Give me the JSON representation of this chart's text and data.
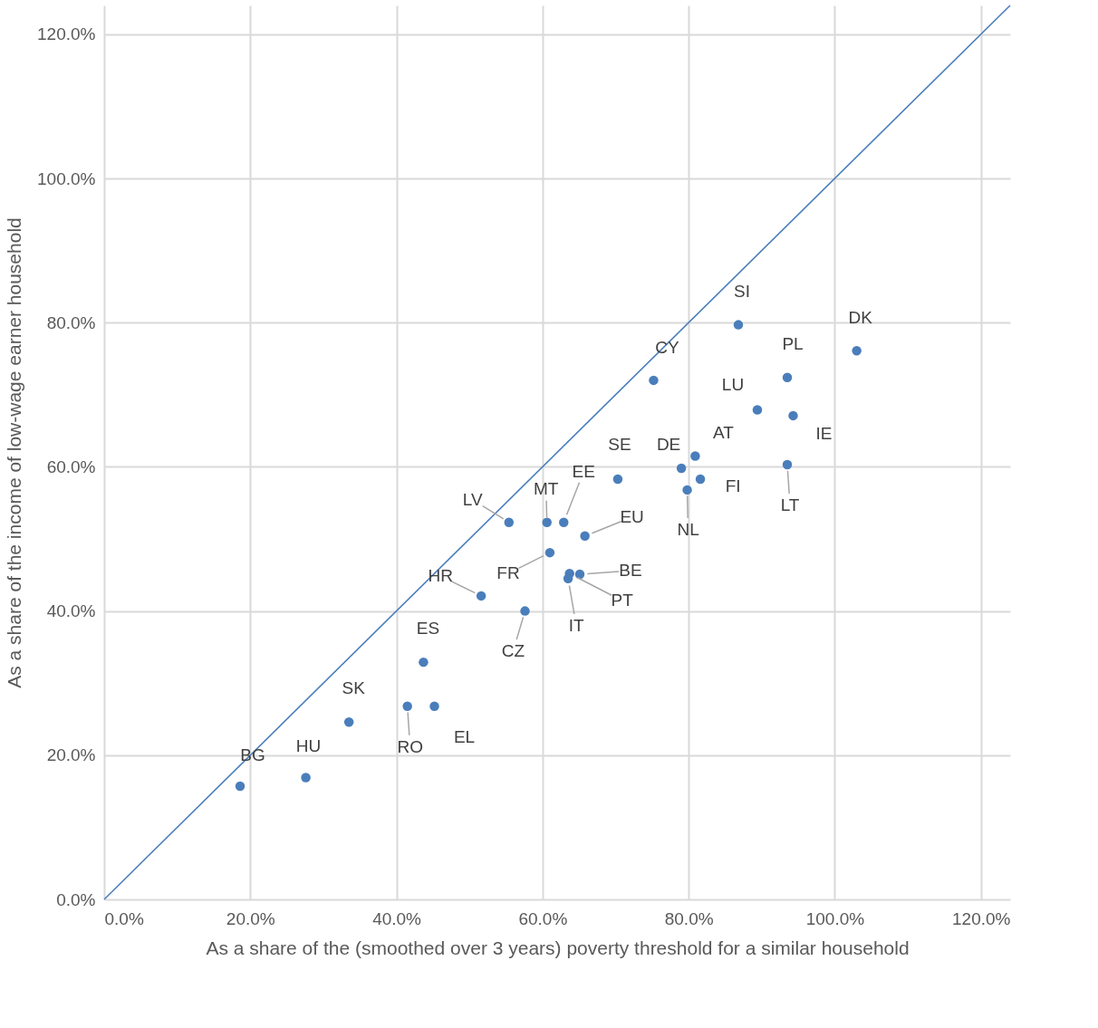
{
  "chart_data": {
    "type": "scatter",
    "xlabel": "As a share of the (smoothed over 3 years) poverty threshold for a similar household",
    "ylabel": "As a share of the income of low-wage earner household",
    "xlim": [
      0,
      124
    ],
    "ylim": [
      0,
      124
    ],
    "xticks": [
      {
        "value": 0,
        "label": "0.0%"
      },
      {
        "value": 20,
        "label": "20.0%"
      },
      {
        "value": 40,
        "label": "40.0%"
      },
      {
        "value": 60,
        "label": "60.0%"
      },
      {
        "value": 80,
        "label": "80.0%"
      },
      {
        "value": 100,
        "label": "100.0%"
      },
      {
        "value": 120,
        "label": "120.0%"
      }
    ],
    "yticks": [
      {
        "value": 0,
        "label": "0.0%"
      },
      {
        "value": 20,
        "label": "20.0%"
      },
      {
        "value": 40,
        "label": "40.0%"
      },
      {
        "value": 60,
        "label": "60.0%"
      },
      {
        "value": 80,
        "label": "80.0%"
      },
      {
        "value": 100,
        "label": "100.0%"
      },
      {
        "value": 120,
        "label": "120.0%"
      }
    ],
    "grid": true,
    "marker": "circle",
    "series": [
      {
        "color": "#4a7ebb",
        "x": [
          18.6,
          27.6,
          33.5,
          41.5,
          45.2,
          43.7,
          57.6,
          51.6,
          61.0,
          63.5,
          63.7,
          65.1,
          55.4,
          60.6,
          62.9,
          65.8,
          70.3,
          75.2,
          79.0,
          79.8,
          80.9,
          81.6,
          86.8,
          89.4,
          93.5,
          94.3,
          93.5,
          103.0
        ],
        "values": [
          15.7,
          16.9,
          24.6,
          26.8,
          26.8,
          32.9,
          40.0,
          42.1,
          48.1,
          44.5,
          45.2,
          45.1,
          52.3,
          52.3,
          52.3,
          50.4,
          58.3,
          72.0,
          59.8,
          56.8,
          61.5,
          58.3,
          79.7,
          67.9,
          72.4,
          67.1,
          60.3,
          76.1
        ]
      },
      {
        "type": "line",
        "color": "#4a7ebb",
        "x": [
          0,
          124
        ],
        "values": [
          0,
          124
        ],
        "line_style": "solid",
        "marker": "none"
      }
    ],
    "annotations": [
      {
        "text": "BG",
        "x": 18.6,
        "y": 15.7
      },
      {
        "text": "HU",
        "x": 27.6,
        "y": 16.9
      },
      {
        "text": "SK",
        "x": 33.5,
        "y": 24.6
      },
      {
        "text": "RO",
        "x": 41.5,
        "y": 26.8
      },
      {
        "text": "EL",
        "x": 45.2,
        "y": 26.8
      },
      {
        "text": "ES",
        "x": 43.7,
        "y": 32.9
      },
      {
        "text": "CZ",
        "x": 57.6,
        "y": 40.0
      },
      {
        "text": "HR",
        "x": 51.6,
        "y": 42.1
      },
      {
        "text": "FR",
        "x": 61.0,
        "y": 48.1
      },
      {
        "text": "IT",
        "x": 63.5,
        "y": 44.5
      },
      {
        "text": "PT",
        "x": 63.7,
        "y": 45.2
      },
      {
        "text": "BE",
        "x": 65.1,
        "y": 45.1
      },
      {
        "text": "LV",
        "x": 55.4,
        "y": 52.3
      },
      {
        "text": "MT",
        "x": 60.6,
        "y": 52.3
      },
      {
        "text": "EE",
        "x": 62.9,
        "y": 52.3
      },
      {
        "text": "EU",
        "x": 65.8,
        "y": 50.4
      },
      {
        "text": "SE",
        "x": 70.3,
        "y": 58.3
      },
      {
        "text": "CY",
        "x": 75.2,
        "y": 72.0
      },
      {
        "text": "DE",
        "x": 79.0,
        "y": 59.8
      },
      {
        "text": "NL",
        "x": 79.8,
        "y": 56.8
      },
      {
        "text": "AT",
        "x": 80.9,
        "y": 61.5
      },
      {
        "text": "FI",
        "x": 81.6,
        "y": 58.3
      },
      {
        "text": "SI",
        "x": 86.8,
        "y": 79.7
      },
      {
        "text": "LU",
        "x": 89.4,
        "y": 67.9
      },
      {
        "text": "PL",
        "x": 93.5,
        "y": 72.4
      },
      {
        "text": "IE",
        "x": 94.3,
        "y": 67.1
      },
      {
        "text": "LT",
        "x": 93.5,
        "y": 60.3
      },
      {
        "text": "DK",
        "x": 103.0,
        "y": 76.1
      }
    ]
  }
}
